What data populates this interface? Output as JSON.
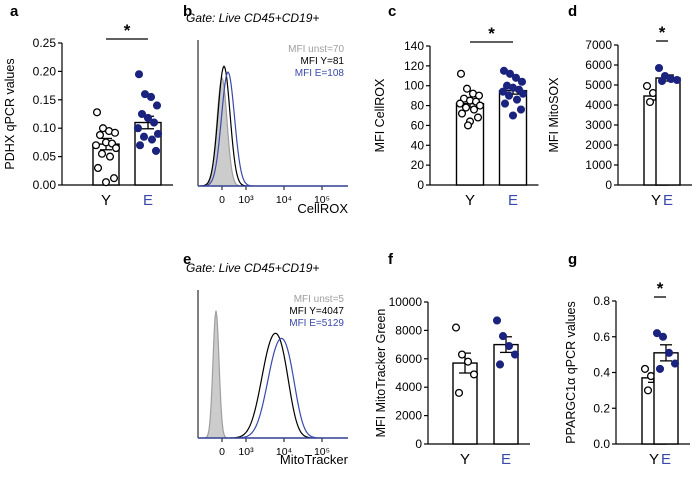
{
  "colors": {
    "young": "#ffffff",
    "elderly": "#1a237e",
    "elderly_label": "#3949ab",
    "unstained": "#9e9e9e",
    "axis": "#000000"
  },
  "chart_data": [
    {
      "panel": "a",
      "type": "bar",
      "ylabel": "PDHX qPCR values",
      "categories": [
        "Y",
        "E"
      ],
      "values": [
        0.072,
        0.11
      ],
      "sem": [
        0.01,
        0.011
      ],
      "ylim": [
        0,
        0.25
      ],
      "yticks": [
        "0.00",
        "0.05",
        "0.10",
        "0.15",
        "0.20",
        "0.25"
      ],
      "significance": "*",
      "points": [
        [
          0.128,
          0.1,
          0.095,
          0.092,
          0.088,
          0.075,
          0.073,
          0.07,
          0.065,
          0.055,
          0.05,
          0.03,
          0.012,
          0.005
        ],
        [
          0.195,
          0.16,
          0.155,
          0.14,
          0.125,
          0.118,
          0.11,
          0.1,
          0.09,
          0.085,
          0.08,
          0.07,
          0.06
        ]
      ]
    },
    {
      "panel": "c",
      "type": "bar",
      "ylabel": "MFI CellROX",
      "categories": [
        "Y",
        "E"
      ],
      "values": [
        82,
        95
      ],
      "sem": [
        3.5,
        3.5
      ],
      "ylim": [
        0,
        140
      ],
      "yticks": [
        "0",
        "20",
        "40",
        "60",
        "80",
        "100",
        "120",
        "140"
      ],
      "significance": "*",
      "points": [
        [
          112,
          97,
          92,
          90,
          87,
          85,
          84,
          82,
          80,
          78,
          76,
          72,
          68,
          64,
          60
        ],
        [
          115,
          112,
          108,
          104,
          100,
          98,
          96,
          94,
          92,
          90,
          86,
          82,
          76,
          70
        ]
      ]
    },
    {
      "panel": "d",
      "type": "bar",
      "ylabel": "MFI MitoSOX",
      "categories": [
        "Y",
        "E"
      ],
      "values": [
        4450,
        5350
      ],
      "sem": [
        200,
        150
      ],
      "ylim": [
        0,
        7000
      ],
      "yticks": [
        "0",
        "1000",
        "2000",
        "3000",
        "4000",
        "5000",
        "6000",
        "7000"
      ],
      "significance": "*",
      "points": [
        [
          4950,
          4600,
          4300,
          4200,
          4150
        ],
        [
          5850,
          5450,
          5300,
          5250,
          5200
        ]
      ]
    },
    {
      "panel": "f",
      "type": "bar",
      "ylabel": "MFI MitoTracker Green",
      "categories": [
        "Y",
        "E"
      ],
      "values": [
        5700,
        7000
      ],
      "sem": [
        700,
        550
      ],
      "ylim": [
        0,
        10000
      ],
      "yticks": [
        "0",
        "2000",
        "4000",
        "6000",
        "8000",
        "10000"
      ],
      "significance": "",
      "points": [
        [
          8200,
          6300,
          5800,
          4900,
          3600
        ],
        [
          8700,
          7600,
          6900,
          6300,
          5600
        ]
      ]
    },
    {
      "panel": "g",
      "type": "bar",
      "ylabel": "PPARGC1α qPCR values",
      "categories": [
        "Y",
        "E"
      ],
      "values": [
        0.37,
        0.51
      ],
      "sem": [
        0.025,
        0.045
      ],
      "ylim": [
        0,
        0.8
      ],
      "yticks": [
        "0.0",
        "0.2",
        "0.4",
        "0.6",
        "0.8"
      ],
      "significance": "*",
      "points": [
        [
          0.42,
          0.38,
          0.35,
          0.33,
          0.3
        ],
        [
          0.62,
          0.6,
          0.51,
          0.45,
          0.42
        ]
      ]
    },
    {
      "panel": "b",
      "type": "histogram",
      "gate": "Gate: Live CD45+CD19+",
      "xlabel": "CellROX",
      "xticks": [
        "0",
        "10³",
        "10⁴",
        "10⁵"
      ],
      "legend": [
        "MFI unst=70",
        "MFI Y=81",
        "MFI E=108"
      ]
    },
    {
      "panel": "e",
      "type": "histogram",
      "gate": "Gate: Live CD45+CD19+",
      "xlabel": "MitoTracker",
      "xticks": [
        "0",
        "10³",
        "10⁴",
        "10⁵"
      ],
      "legend": [
        "MFI unst=5",
        "MFI Y=4047",
        "MFI E=5129"
      ]
    }
  ]
}
